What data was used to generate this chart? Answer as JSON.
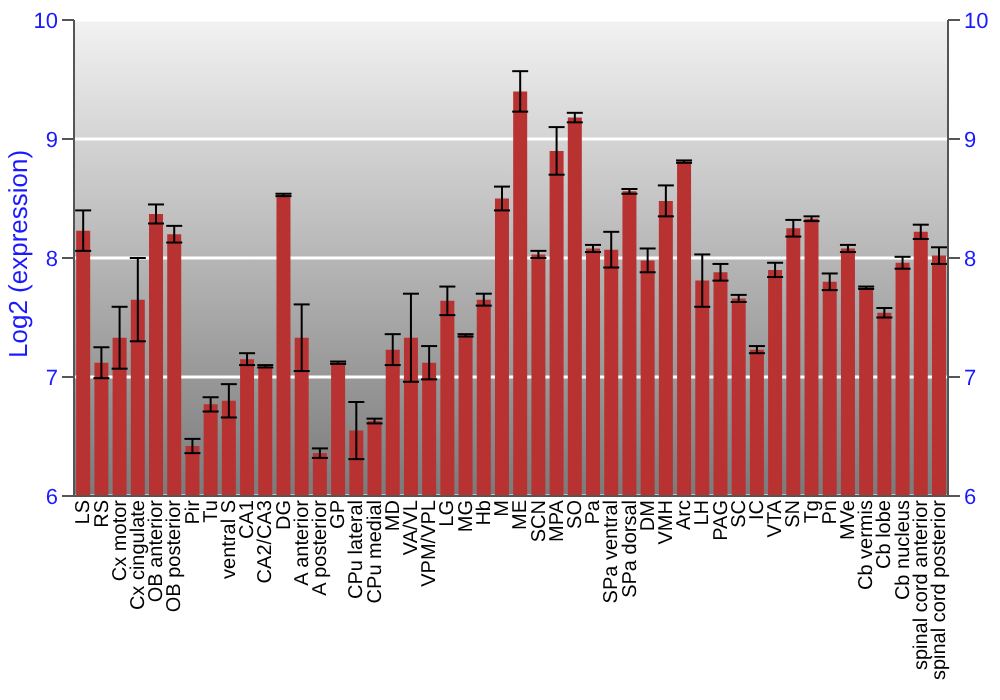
{
  "chart_data": {
    "type": "bar",
    "ylabel": "Log2 (expression)",
    "categories": [
      "LS",
      "RS",
      "Cx motor",
      "Cx cingulate",
      "OB anterior",
      "OB posterior",
      "Pir",
      "Tu",
      "ventral S",
      "CA1",
      "CA2/CA3",
      "DG",
      "A anterior",
      "A posterior",
      "GP",
      "CPu lateral",
      "CPu medial",
      "MD",
      "VA/VL",
      "VPM/VPL",
      "LG",
      "MG",
      "Hb",
      "M",
      "ME",
      "SCN",
      "MPA",
      "SO",
      "Pa",
      "SPa ventral",
      "SPa dorsal",
      "DM",
      "VMH",
      "Arc",
      "LH",
      "PAG",
      "SC",
      "IC",
      "VTA",
      "SN",
      "Tg",
      "Pn",
      "MVe",
      "Cb vermis",
      "Cb lobe",
      "Cb nucleus",
      "spinal cord anterior",
      "spinal cord posterior"
    ],
    "values": [
      8.23,
      7.12,
      7.33,
      7.65,
      8.37,
      8.2,
      6.42,
      6.77,
      6.8,
      7.15,
      7.09,
      8.53,
      7.33,
      6.36,
      7.12,
      6.55,
      6.63,
      7.23,
      7.33,
      7.12,
      7.64,
      7.35,
      7.65,
      8.5,
      9.4,
      8.03,
      8.9,
      9.18,
      8.08,
      8.07,
      8.56,
      7.98,
      8.48,
      8.81,
      7.81,
      7.88,
      7.66,
      7.23,
      7.9,
      8.25,
      8.33,
      7.8,
      8.08,
      7.75,
      7.54,
      7.96,
      8.22,
      8.02
    ],
    "errors": [
      0.17,
      0.13,
      0.26,
      0.35,
      0.08,
      0.07,
      0.06,
      0.06,
      0.14,
      0.05,
      0.01,
      0.01,
      0.28,
      0.04,
      0.01,
      0.24,
      0.02,
      0.13,
      0.37,
      0.14,
      0.12,
      0.01,
      0.05,
      0.1,
      0.17,
      0.03,
      0.2,
      0.04,
      0.03,
      0.15,
      0.02,
      0.1,
      0.13,
      0.01,
      0.22,
      0.07,
      0.03,
      0.03,
      0.06,
      0.07,
      0.02,
      0.07,
      0.03,
      0.01,
      0.04,
      0.05,
      0.06,
      0.07
    ],
    "color": "#b83232",
    "ylim": [
      6,
      10
    ],
    "yticks": [
      6,
      7,
      8,
      9,
      10
    ],
    "y2lim": [
      6,
      10
    ],
    "y2ticks": [
      6,
      7,
      8,
      9,
      10
    ],
    "grid": "y"
  }
}
